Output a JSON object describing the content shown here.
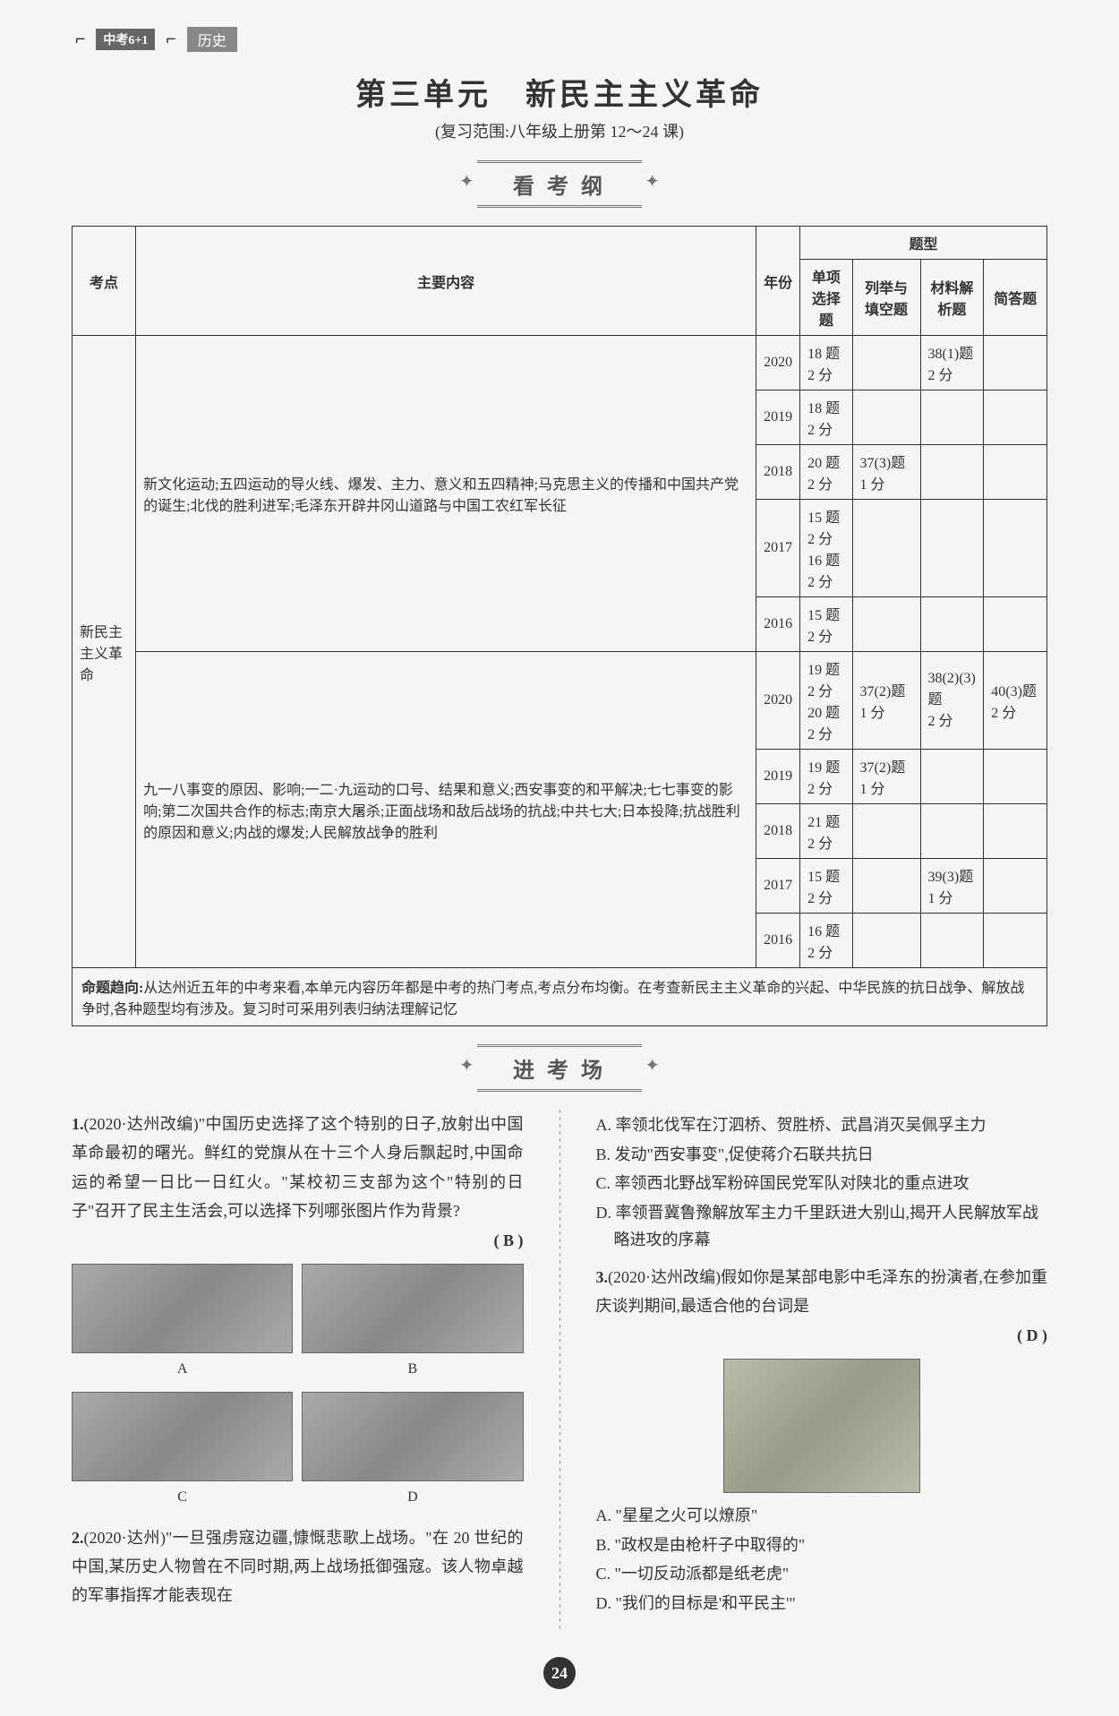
{
  "header": {
    "logo_text": "中考6+1",
    "subject": "历史"
  },
  "unit": {
    "title": "第三单元　新民主主义革命",
    "subtitle": "(复习范围:八年级上册第 12～24 课)"
  },
  "sections": {
    "syllabus_banner": "看 考 纲",
    "exam_banner": "进 考 场"
  },
  "table": {
    "headers": {
      "point": "考点",
      "content": "主要内容",
      "year": "年份",
      "type_group": "题型",
      "type_mc": "单项选择题",
      "type_fill": "列举与填空题",
      "type_material": "材料解析题",
      "type_short": "简答题"
    },
    "topic": "新民主主义革命",
    "content1": "新文化运动;五四运动的导火线、爆发、主力、意义和五四精神;马克思主义的传播和中国共产党的诞生;北伐的胜利进军;毛泽东开辟井冈山道路与中国工农红军长征",
    "content2": "九一八事变的原因、影响;一二·九运动的口号、结果和意义;西安事变的和平解决;七七事变的影响;第二次国共合作的标志;南京大屠杀;正面战场和敌后战场的抗战;中共七大;日本投降;抗战胜利的原因和意义;内战的爆发;人民解放战争的胜利",
    "rows": [
      {
        "year": "2020",
        "mc": "18 题 2 分",
        "fill": "",
        "material": "38(1)题 2 分",
        "short": ""
      },
      {
        "year": "2019",
        "mc": "18 题 2 分",
        "fill": "",
        "material": "",
        "short": ""
      },
      {
        "year": "2018",
        "mc": "20 题 2 分",
        "fill": "37(3)题 1 分",
        "material": "",
        "short": ""
      },
      {
        "year": "2017",
        "mc": "15 题 2 分\n16 题 2 分",
        "fill": "",
        "material": "",
        "short": ""
      },
      {
        "year": "2016",
        "mc": "15 题 2 分",
        "fill": "",
        "material": "",
        "short": ""
      },
      {
        "year": "2020",
        "mc": "19 题 2 分\n20 题 2 分",
        "fill": "37(2)题 1 分",
        "material": "38(2)(3)题\n2 分",
        "short": "40(3)题 2 分"
      },
      {
        "year": "2019",
        "mc": "19 题 2 分",
        "fill": "37(2)题 1 分",
        "material": "",
        "short": ""
      },
      {
        "year": "2018",
        "mc": "21 题 2 分",
        "fill": "",
        "material": "",
        "short": ""
      },
      {
        "year": "2017",
        "mc": "15 题 2 分",
        "fill": "",
        "material": "39(3)题 1 分",
        "short": ""
      },
      {
        "year": "2016",
        "mc": "16 题 2 分",
        "fill": "",
        "material": "",
        "short": ""
      }
    ],
    "trend_label": "命题趋向:",
    "trend_text": "从达州近五年的中考来看,本单元内容历年都是中考的热门考点,考点分布均衡。在考查新民主主义革命的兴起、中华民族的抗日战争、解放战争时,各种题型均有涉及。复习时可采用列表归纳法理解记忆"
  },
  "questions": {
    "q1": {
      "num": "1.",
      "source": "(2020·达州改编)",
      "text": "\"中国历史选择了这个特别的日子,放射出中国革命最初的曙光。鲜红的党旗从在十三个人身后飘起时,中国命运的希望一日比一日红火。\"某校初三支部为这个\"特别的日子\"召开了民主生活会,可以选择下列哪张图片作为背景?",
      "answer": "( B )",
      "labels": {
        "a": "A",
        "b": "B",
        "c": "C",
        "d": "D"
      }
    },
    "q2": {
      "num": "2.",
      "source": "(2020·达州)",
      "text": "\"一旦强虏寇边疆,慷慨悲歌上战场。\"在 20 世纪的中国,某历史人物曾在不同时期,两上战场抵御强寇。该人物卓越的军事指挥才能表现在",
      "answer_pending": "",
      "options": {
        "a": "A. 率领北伐军在汀泗桥、贺胜桥、武昌消灭吴佩孚主力",
        "b": "B. 发动\"西安事变\",促使蒋介石联共抗日",
        "c": "C. 率领西北野战军粉碎国民党军队对陕北的重点进攻",
        "d": "D. 率领晋冀鲁豫解放军主力千里跃进大别山,揭开人民解放军战略进攻的序幕"
      }
    },
    "q3": {
      "num": "3.",
      "source": "(2020·达州改编)",
      "text": "假如你是某部电影中毛泽东的扮演者,在参加重庆谈判期间,最适合他的台词是",
      "answer": "( D )",
      "options": {
        "a": "A. \"星星之火可以燎原\"",
        "b": "B. \"政权是由枪杆子中取得的\"",
        "c": "C. \"一切反动派都是纸老虎\"",
        "d": "D. \"我们的目标是'和平民主'\""
      }
    }
  },
  "page_number": "24"
}
